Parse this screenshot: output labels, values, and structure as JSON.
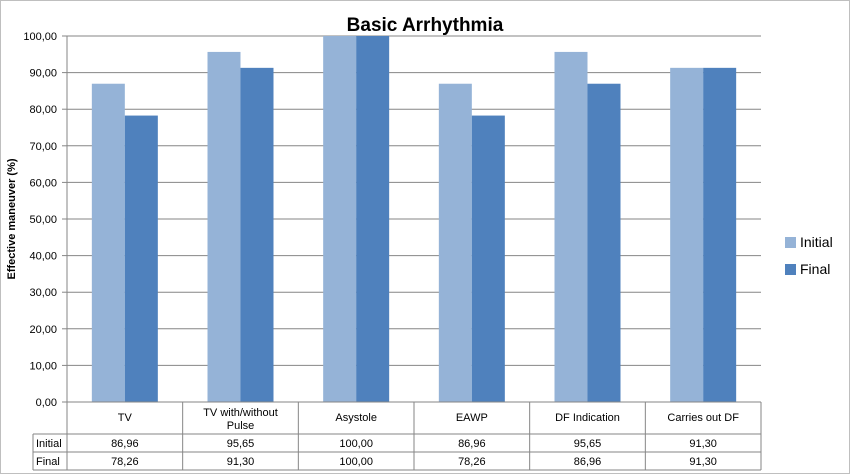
{
  "chart_data": {
    "type": "bar",
    "title": "Basic Arrhythmia",
    "xlabel": "",
    "ylabel": "Effective maneuver (%)",
    "ylim": [
      0,
      100
    ],
    "yticks": [
      "0,00",
      "10,00",
      "20,00",
      "30,00",
      "40,00",
      "50,00",
      "60,00",
      "70,00",
      "80,00",
      "90,00",
      "100,00"
    ],
    "categories": [
      [
        "TV"
      ],
      [
        "TV with/without",
        "Pulse"
      ],
      [
        "Asystole"
      ],
      [
        "EAWP"
      ],
      [
        "DF Indication"
      ],
      [
        "Carries out DF"
      ]
    ],
    "series": [
      {
        "name": "Initial",
        "color": "#95b3d7",
        "values": [
          86.96,
          95.65,
          100.0,
          86.96,
          95.65,
          91.3
        ],
        "labels": [
          "86,96",
          "95,65",
          "100,00",
          "86,96",
          "95,65",
          "91,30"
        ]
      },
      {
        "name": "Final",
        "color": "#4f81bd",
        "values": [
          78.26,
          91.3,
          100.0,
          78.26,
          86.96,
          91.3
        ],
        "labels": [
          "78,26",
          "91,30",
          "100,00",
          "78,26",
          "86,96",
          "91,30"
        ]
      }
    ],
    "grid": true,
    "legend_position": "right",
    "data_table": true
  }
}
